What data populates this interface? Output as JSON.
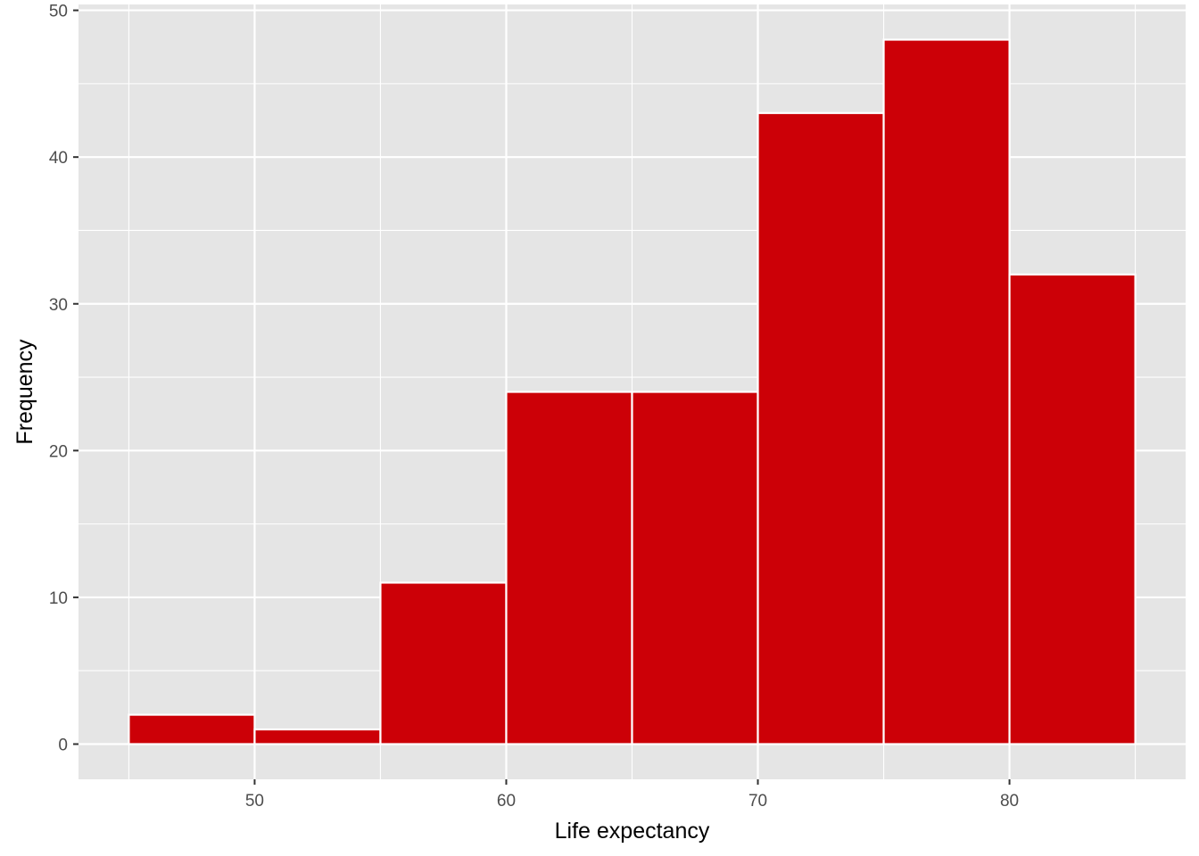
{
  "chart_data": {
    "type": "bar",
    "subtype": "histogram",
    "title": "",
    "xlabel": "Life expectancy",
    "ylabel": "Frequency",
    "bins": [
      {
        "x0": 45,
        "x1": 50,
        "count": 2
      },
      {
        "x0": 50,
        "x1": 55,
        "count": 1
      },
      {
        "x0": 55,
        "x1": 60,
        "count": 11
      },
      {
        "x0": 60,
        "x1": 65,
        "count": 24
      },
      {
        "x0": 65,
        "x1": 70,
        "count": 24
      },
      {
        "x0": 70,
        "x1": 75,
        "count": 43
      },
      {
        "x0": 75,
        "x1": 80,
        "count": 48
      },
      {
        "x0": 80,
        "x1": 85,
        "count": 32
      }
    ],
    "xlim": [
      43,
      87
    ],
    "ylim": [
      -2.4,
      50.4
    ],
    "xticks": [
      50,
      60,
      70,
      80
    ],
    "xticks_minor": [
      45,
      55,
      65,
      75,
      85
    ],
    "yticks": [
      0,
      10,
      20,
      30,
      40,
      50
    ],
    "yticks_minor": [
      5,
      15,
      25,
      35,
      45
    ],
    "grid": true,
    "legend": "none",
    "colors": {
      "bar_fill": "#CC0007",
      "bar_outline": "#FFFFFF",
      "panel_background": "#E5E5E5",
      "grid": "#FFFFFF"
    }
  }
}
